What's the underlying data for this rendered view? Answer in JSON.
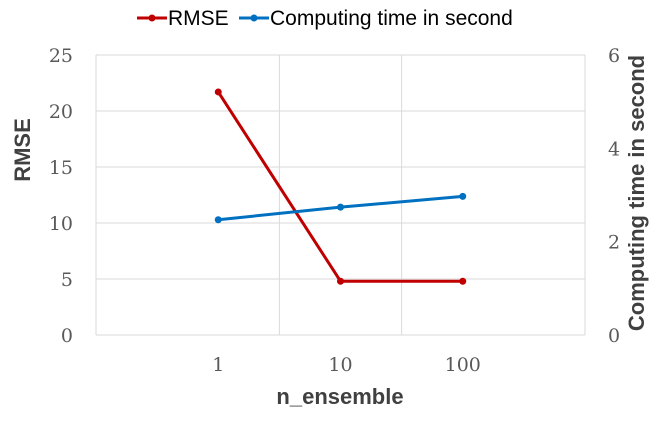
{
  "chart_data": {
    "type": "line",
    "categories": [
      "1",
      "10",
      "100"
    ],
    "xlabel": "n_ensemble",
    "ylabel": "RMSE",
    "y2label": "Computing time in second",
    "ylim": [
      0,
      25
    ],
    "yticks": [
      "0",
      "5",
      "10",
      "15",
      "20",
      "25"
    ],
    "y2lim": [
      0,
      6
    ],
    "y2ticks": [
      "0",
      "2",
      "4",
      "6"
    ],
    "grid": true,
    "legend_position": "top",
    "series": [
      {
        "name": "RMSE",
        "axis": "left",
        "color": "#C00000",
        "values": [
          21.7,
          4.8,
          4.8
        ]
      },
      {
        "name": "Computing time in second",
        "axis": "right",
        "color": "#0070C0",
        "values": [
          2.47,
          2.74,
          2.97
        ]
      }
    ]
  }
}
